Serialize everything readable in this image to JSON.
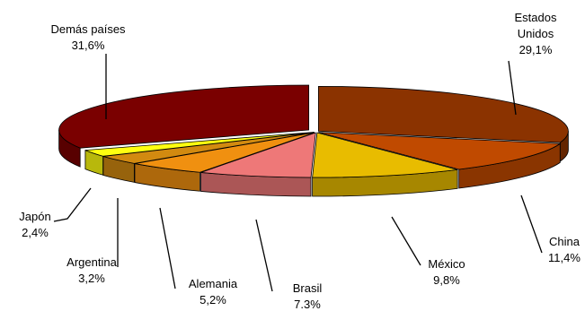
{
  "chart_data": {
    "type": "pie",
    "style": "3d-exploded",
    "title": "",
    "slices": [
      {
        "name": "Estados Unidos",
        "name_lines": [
          "Estados",
          "Unidos"
        ],
        "value": 29.1,
        "value_label": "29,1%",
        "color": "#8B3300"
      },
      {
        "name": "China",
        "name_lines": [
          "China"
        ],
        "value": 11.4,
        "value_label": "11,4%",
        "color": "#C04A00"
      },
      {
        "name": "México",
        "name_lines": [
          "México"
        ],
        "value": 9.8,
        "value_label": "9,8%",
        "color": "#E8BC00"
      },
      {
        "name": "Brasil",
        "name_lines": [
          "Brasil"
        ],
        "value": 7.3,
        "value_label": "7.3%",
        "color": "#EE7878"
      },
      {
        "name": "Alemania",
        "name_lines": [
          "Alemania"
        ],
        "value": 5.2,
        "value_label": "5,2%",
        "color": "#F09010"
      },
      {
        "name": "Argentina",
        "name_lines": [
          "Argentina"
        ],
        "value": 3.2,
        "value_label": "3,2%",
        "color": "#D28A10"
      },
      {
        "name": "Japón",
        "name_lines": [
          "Japón"
        ],
        "value": 2.4,
        "value_label": "2,4%",
        "color": "#FFFF10"
      },
      {
        "name": "Demás países",
        "name_lines": [
          "Demás países"
        ],
        "value": 31.6,
        "value_label": "31,6%",
        "color": "#7A0000"
      }
    ]
  }
}
